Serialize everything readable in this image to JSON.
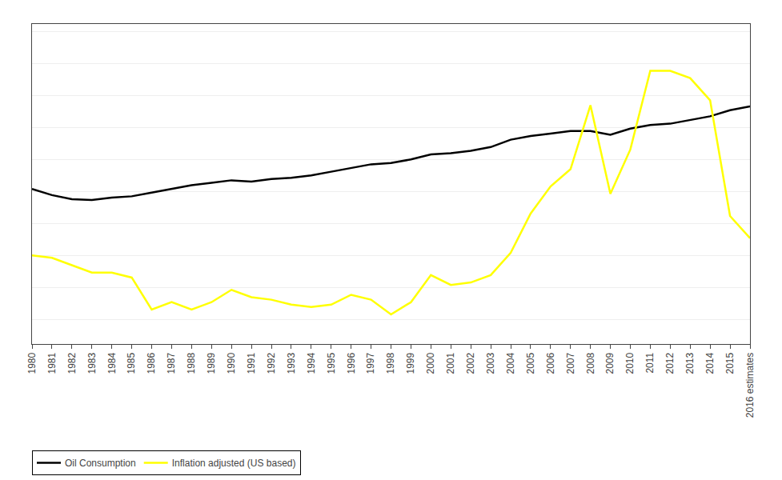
{
  "chart_data": {
    "type": "line",
    "categories": [
      "1980",
      "1981",
      "1982",
      "1983",
      "1984",
      "1985",
      "1986",
      "1987",
      "1988",
      "1989",
      "1990",
      "1991",
      "1992",
      "1993",
      "1994",
      "1995",
      "1996",
      "1997",
      "1998",
      "1999",
      "2000",
      "2001",
      "2002",
      "2003",
      "2004",
      "2005",
      "2006",
      "2007",
      "2008",
      "2009",
      "2010",
      "2011",
      "2012",
      "2013",
      "2014",
      "2015",
      "2016 estimates"
    ],
    "series": [
      {
        "name": "Oil Consumption",
        "color": "#000000",
        "values": [
          63.0,
          60.5,
          58.8,
          58.5,
          59.5,
          60.0,
          61.5,
          63.0,
          64.5,
          65.5,
          66.5,
          66.0,
          67.0,
          67.5,
          68.5,
          70.0,
          71.5,
          73.0,
          73.5,
          75.0,
          77.0,
          77.5,
          78.5,
          80.0,
          83.0,
          84.5,
          85.5,
          86.5,
          86.5,
          85.0,
          87.5,
          89.0,
          89.5,
          91.0,
          92.5,
          95.0,
          96.5
        ]
      },
      {
        "name": "Inflation adjusted (US based)",
        "color": "#ffff00",
        "values": [
          36,
          35,
          32,
          29,
          29,
          27,
          14,
          17,
          14,
          17,
          22,
          19,
          18,
          16,
          15,
          16,
          20,
          18,
          12,
          17,
          28,
          24,
          25,
          28,
          37,
          53,
          64,
          71,
          97,
          61,
          79,
          111,
          111,
          108,
          99,
          52,
          43
        ]
      }
    ],
    "ylim": [
      0,
      130
    ],
    "yticks": [
      10,
      23,
      36,
      49,
      62,
      75,
      88,
      101,
      114,
      127
    ],
    "grid": true,
    "legend": "lower left",
    "tick_labels": "x"
  }
}
